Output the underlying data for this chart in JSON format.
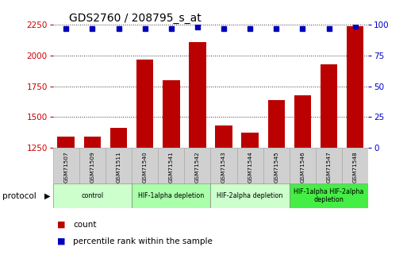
{
  "title": "GDS2760 / 208795_s_at",
  "samples": [
    "GSM71507",
    "GSM71509",
    "GSM71511",
    "GSM71540",
    "GSM71541",
    "GSM71542",
    "GSM71543",
    "GSM71544",
    "GSM71545",
    "GSM71546",
    "GSM71547",
    "GSM71548"
  ],
  "counts": [
    1340,
    1345,
    1415,
    1970,
    1800,
    2110,
    1430,
    1375,
    1640,
    1680,
    1930,
    2240
  ],
  "percentiles": [
    97,
    97,
    97,
    97,
    97,
    98,
    97,
    97,
    97,
    97,
    97,
    99
  ],
  "ylim_left": [
    1250,
    2250
  ],
  "ylim_right": [
    0,
    100
  ],
  "yticks_left": [
    1250,
    1500,
    1750,
    2000,
    2250
  ],
  "yticks_right": [
    0,
    25,
    50,
    75,
    100
  ],
  "bar_color": "#bb0000",
  "dot_color": "#0000bb",
  "bar_width": 0.65,
  "protocol_groups": [
    {
      "label": "control",
      "start": 0,
      "end": 2,
      "color": "#ccffcc"
    },
    {
      "label": "HIF-1alpha depletion",
      "start": 3,
      "end": 5,
      "color": "#aaffaa"
    },
    {
      "label": "HIF-2alpha depletion",
      "start": 6,
      "end": 8,
      "color": "#ccffcc"
    },
    {
      "label": "HIF-1alpha HIF-2alpha\ndepletion",
      "start": 9,
      "end": 11,
      "color": "#44ee44"
    }
  ],
  "legend_count_label": "count",
  "legend_pct_label": "percentile rank within the sample",
  "protocol_label": "protocol",
  "bg_color": "#ffffff",
  "grid_color": "#333333",
  "tick_color_left": "#cc0000",
  "tick_color_right": "#0000cc",
  "sample_box_color": "#d0d0d0",
  "sample_box_border": "#aaaaaa"
}
